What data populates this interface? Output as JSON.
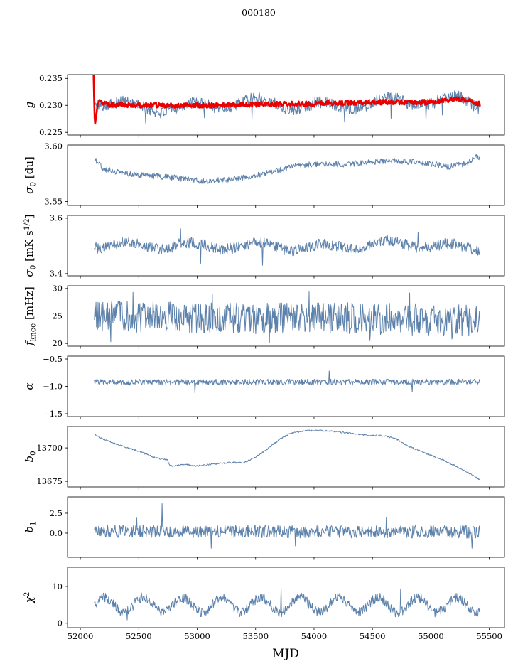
{
  "title": "000180",
  "xlabel": "MJD",
  "colors": {
    "series_blue": "#5c81ab",
    "series_red": "#ea0000",
    "axis": "#000000",
    "background": "#ffffff"
  },
  "x_axis": {
    "lim": [
      51890,
      55630
    ],
    "ticks": [
      52000,
      52500,
      53000,
      53500,
      54000,
      54500,
      55000,
      55500
    ],
    "tick_labels": [
      "52000",
      "52500",
      "53000",
      "53500",
      "54000",
      "54500",
      "55000",
      "55500"
    ],
    "data_start": 52120,
    "data_end": 55420
  },
  "chart_data": [
    {
      "type": "line",
      "ylabel": "g",
      "ylabel_parts": [
        {
          "t": "g",
          "i": true
        }
      ],
      "ylim": [
        0.2245,
        0.2357
      ],
      "yticks": [
        0.225,
        0.23,
        0.235
      ],
      "ytick_labels": [
        "0.225",
        "0.230",
        "0.235"
      ],
      "series": [
        {
          "name": "g daily",
          "color": "#5c81ab",
          "width": 1.0,
          "seed": 101,
          "noise": 0.0011,
          "wander": 0.0008,
          "trend": [
            [
              52120,
              0.2304
            ],
            [
              52300,
              0.2299
            ],
            [
              52700,
              0.2299
            ],
            [
              53200,
              0.23
            ],
            [
              53800,
              0.2302
            ],
            [
              54300,
              0.2303
            ],
            [
              54800,
              0.2303
            ],
            [
              55000,
              0.2305
            ],
            [
              55250,
              0.2313
            ],
            [
              55420,
              0.2306
            ]
          ],
          "spikes": [
            [
              52560,
              0.2267
            ],
            [
              53060,
              0.2277
            ],
            [
              53470,
              0.2274
            ],
            [
              54260,
              0.227
            ],
            [
              54660,
              0.2276
            ],
            [
              54960,
              0.2272
            ],
            [
              55100,
              0.2282
            ]
          ]
        },
        {
          "name": "g smoothed",
          "color": "#ea0000",
          "width": 2.6,
          "seed": 102,
          "noise": 0.00045,
          "x_start": 52113,
          "trend": [
            [
              52113,
              0.2356
            ],
            [
              52124,
              0.2257
            ],
            [
              52152,
              0.2307
            ],
            [
              52250,
              0.2301
            ],
            [
              52600,
              0.23
            ],
            [
              53100,
              0.23
            ],
            [
              53600,
              0.2302
            ],
            [
              54100,
              0.2304
            ],
            [
              54600,
              0.2306
            ],
            [
              55000,
              0.2306
            ],
            [
              55230,
              0.2312
            ],
            [
              55330,
              0.2309
            ],
            [
              55420,
              0.2302
            ]
          ]
        }
      ]
    },
    {
      "type": "line",
      "ylabel": "σ0 [du]",
      "ylabel_parts": [
        {
          "t": "σ",
          "i": true
        },
        {
          "t": "0",
          "sub": true
        },
        {
          "t": " [du]"
        }
      ],
      "ylim": [
        3.5465,
        3.601
      ],
      "yticks": [
        3.55,
        3.6
      ],
      "ytick_labels": [
        "3.55",
        "3.60"
      ],
      "series": [
        {
          "name": "sigma0 du",
          "color": "#5c81ab",
          "width": 1.0,
          "seed": 201,
          "noise": 0.0026,
          "trend": [
            [
              52120,
              3.589
            ],
            [
              52200,
              3.579
            ],
            [
              52450,
              3.5745
            ],
            [
              52800,
              3.5715
            ],
            [
              53050,
              3.5685
            ],
            [
              53250,
              3.5695
            ],
            [
              53450,
              3.5725
            ],
            [
              53650,
              3.577
            ],
            [
              53850,
              3.5825
            ],
            [
              54050,
              3.584
            ],
            [
              54250,
              3.5835
            ],
            [
              54450,
              3.585
            ],
            [
              54650,
              3.587
            ],
            [
              54850,
              3.5855
            ],
            [
              55050,
              3.5835
            ],
            [
              55150,
              3.5815
            ],
            [
              55300,
              3.584
            ],
            [
              55390,
              3.591
            ],
            [
              55420,
              3.588
            ]
          ]
        }
      ]
    },
    {
      "type": "line",
      "ylabel": "σ0 [mK s1/2]",
      "ylabel_parts": [
        {
          "t": "σ",
          "i": true
        },
        {
          "t": "0",
          "sub": true
        },
        {
          "t": " [mK s"
        },
        {
          "t": "1/2",
          "sup": true
        },
        {
          "t": "]"
        }
      ],
      "ylim": [
        3.392,
        3.61
      ],
      "yticks": [
        3.4,
        3.6
      ],
      "ytick_labels": [
        "3.4",
        "3.6"
      ],
      "series": [
        {
          "name": "sigma0 mK",
          "color": "#5c81ab",
          "width": 1.0,
          "seed": 301,
          "noise": 0.02,
          "wander": 0.012,
          "trend": [
            [
              52120,
              3.497
            ],
            [
              52500,
              3.503
            ],
            [
              52850,
              3.51
            ],
            [
              53000,
              3.5
            ],
            [
              53400,
              3.492
            ],
            [
              53800,
              3.497
            ],
            [
              54200,
              3.503
            ],
            [
              54600,
              3.499
            ],
            [
              55000,
              3.501
            ],
            [
              55420,
              3.496
            ]
          ],
          "spikes": [
            [
              52860,
              3.562
            ],
            [
              53030,
              3.437
            ],
            [
              54890,
              3.548
            ],
            [
              53560,
              3.43
            ]
          ]
        }
      ]
    },
    {
      "type": "line",
      "ylabel": "fknee [mHz]",
      "ylabel_parts": [
        {
          "t": "f",
          "i": true
        },
        {
          "t": "knee",
          "sub": true
        },
        {
          "t": " [mHz]"
        }
      ],
      "ylim": [
        19.5,
        30.5
      ],
      "yticks": [
        20,
        25,
        30
      ],
      "ytick_labels": [
        "20",
        "25",
        "30"
      ],
      "series": [
        {
          "name": "fknee",
          "color": "#5c81ab",
          "width": 1.0,
          "seed": 401,
          "noise": 2.9,
          "trend": [
            [
              52120,
              25.2
            ],
            [
              52600,
              24.8
            ],
            [
              53200,
              24.5
            ],
            [
              54000,
              24.6
            ],
            [
              54800,
              24.4
            ],
            [
              55420,
              24.1
            ]
          ],
          "spikes": [
            [
              52450,
              29.3
            ],
            [
              53130,
              29.0
            ],
            [
              53960,
              29.4
            ],
            [
              54820,
              29.2
            ],
            [
              52260,
              20.3
            ],
            [
              53620,
              20.2
            ],
            [
              54480,
              20.5
            ],
            [
              55180,
              20.8
            ]
          ]
        }
      ]
    },
    {
      "type": "line",
      "ylabel": "α",
      "ylabel_parts": [
        {
          "t": "α",
          "i": true
        }
      ],
      "ylim": [
        -1.552,
        -0.448
      ],
      "yticks": [
        -0.5,
        -1.0,
        -1.5
      ],
      "ytick_labels": [
        "−0.5",
        "−1.0",
        "−1.5"
      ],
      "series": [
        {
          "name": "alpha",
          "color": "#5c81ab",
          "width": 1.0,
          "seed": 501,
          "noise": 0.055,
          "trend": [
            [
              52120,
              -0.925
            ],
            [
              55420,
              -0.92
            ]
          ],
          "spikes": [
            [
              52980,
              -1.12
            ],
            [
              54130,
              -0.72
            ],
            [
              54840,
              -1.1
            ]
          ]
        }
      ]
    },
    {
      "type": "line",
      "ylabel": "b0",
      "ylabel_parts": [
        {
          "t": "b",
          "i": true
        },
        {
          "t": "0",
          "sub": true
        }
      ],
      "ylim": [
        13670.8,
        13716
      ],
      "yticks": [
        13675,
        13700
      ],
      "ytick_labels": [
        "13675",
        "13700"
      ],
      "series": [
        {
          "name": "b0",
          "color": "#5c81ab",
          "width": 1.0,
          "seed": 601,
          "noise": 0.55,
          "n": 650,
          "trend": [
            [
              52120,
              13710
            ],
            [
              52200,
              13706.5
            ],
            [
              52350,
              13701.5
            ],
            [
              52500,
              13697.5
            ],
            [
              52650,
              13692.5
            ],
            [
              52745,
              13691
            ],
            [
              52765,
              13686.5
            ],
            [
              52900,
              13687.5
            ],
            [
              53000,
              13686.5
            ],
            [
              53150,
              13688
            ],
            [
              53300,
              13689
            ],
            [
              53400,
              13689
            ],
            [
              53500,
              13693
            ],
            [
              53600,
              13699
            ],
            [
              53700,
              13706
            ],
            [
              53800,
              13711
            ],
            [
              53900,
              13712.5
            ],
            [
              54000,
              13713
            ],
            [
              54150,
              13712.5
            ],
            [
              54300,
              13711
            ],
            [
              54450,
              13709.5
            ],
            [
              54600,
              13709
            ],
            [
              54700,
              13707
            ],
            [
              54800,
              13701.5
            ],
            [
              54900,
              13698
            ],
            [
              55000,
              13694.5
            ],
            [
              55100,
              13691
            ],
            [
              55200,
              13687
            ],
            [
              55300,
              13682.5
            ],
            [
              55420,
              13676
            ]
          ]
        }
      ]
    },
    {
      "type": "line",
      "ylabel": "b1",
      "ylabel_parts": [
        {
          "t": "b",
          "i": true
        },
        {
          "t": "1",
          "sub": true
        }
      ],
      "ylim": [
        -3.04,
        4.55
      ],
      "yticks": [
        0.0,
        2.5
      ],
      "ytick_labels": [
        "0.0",
        "2.5"
      ],
      "series": [
        {
          "name": "b1",
          "color": "#5c81ab",
          "width": 1.0,
          "seed": 701,
          "noise": 0.8,
          "trend": [
            [
              52120,
              0.25
            ],
            [
              55420,
              0.15
            ]
          ],
          "spikes": [
            [
              52700,
              3.7
            ],
            [
              53120,
              -1.9
            ],
            [
              55350,
              -1.9
            ],
            [
              52480,
              1.9
            ],
            [
              54620,
              2.0
            ],
            [
              53840,
              -1.6
            ]
          ]
        }
      ]
    },
    {
      "type": "line",
      "ylabel": "χ2",
      "ylabel_parts": [
        {
          "t": "χ",
          "i": true
        },
        {
          "t": "2",
          "sup": true
        }
      ],
      "ylim": [
        -1.2,
        15.2
      ],
      "yticks": [
        0,
        10
      ],
      "ytick_labels": [
        "0",
        "10"
      ],
      "series": [
        {
          "name": "chi2",
          "color": "#5c81ab",
          "width": 1.0,
          "seed": 801,
          "noise": 1.35,
          "period": 335,
          "osc_amp": 2.0,
          "trend": [
            [
              52120,
              5.0
            ],
            [
              55420,
              4.9
            ]
          ],
          "spikes": [
            [
              53720,
              9.6
            ],
            [
              54740,
              9.2
            ],
            [
              52400,
              0.9
            ]
          ]
        }
      ]
    }
  ]
}
